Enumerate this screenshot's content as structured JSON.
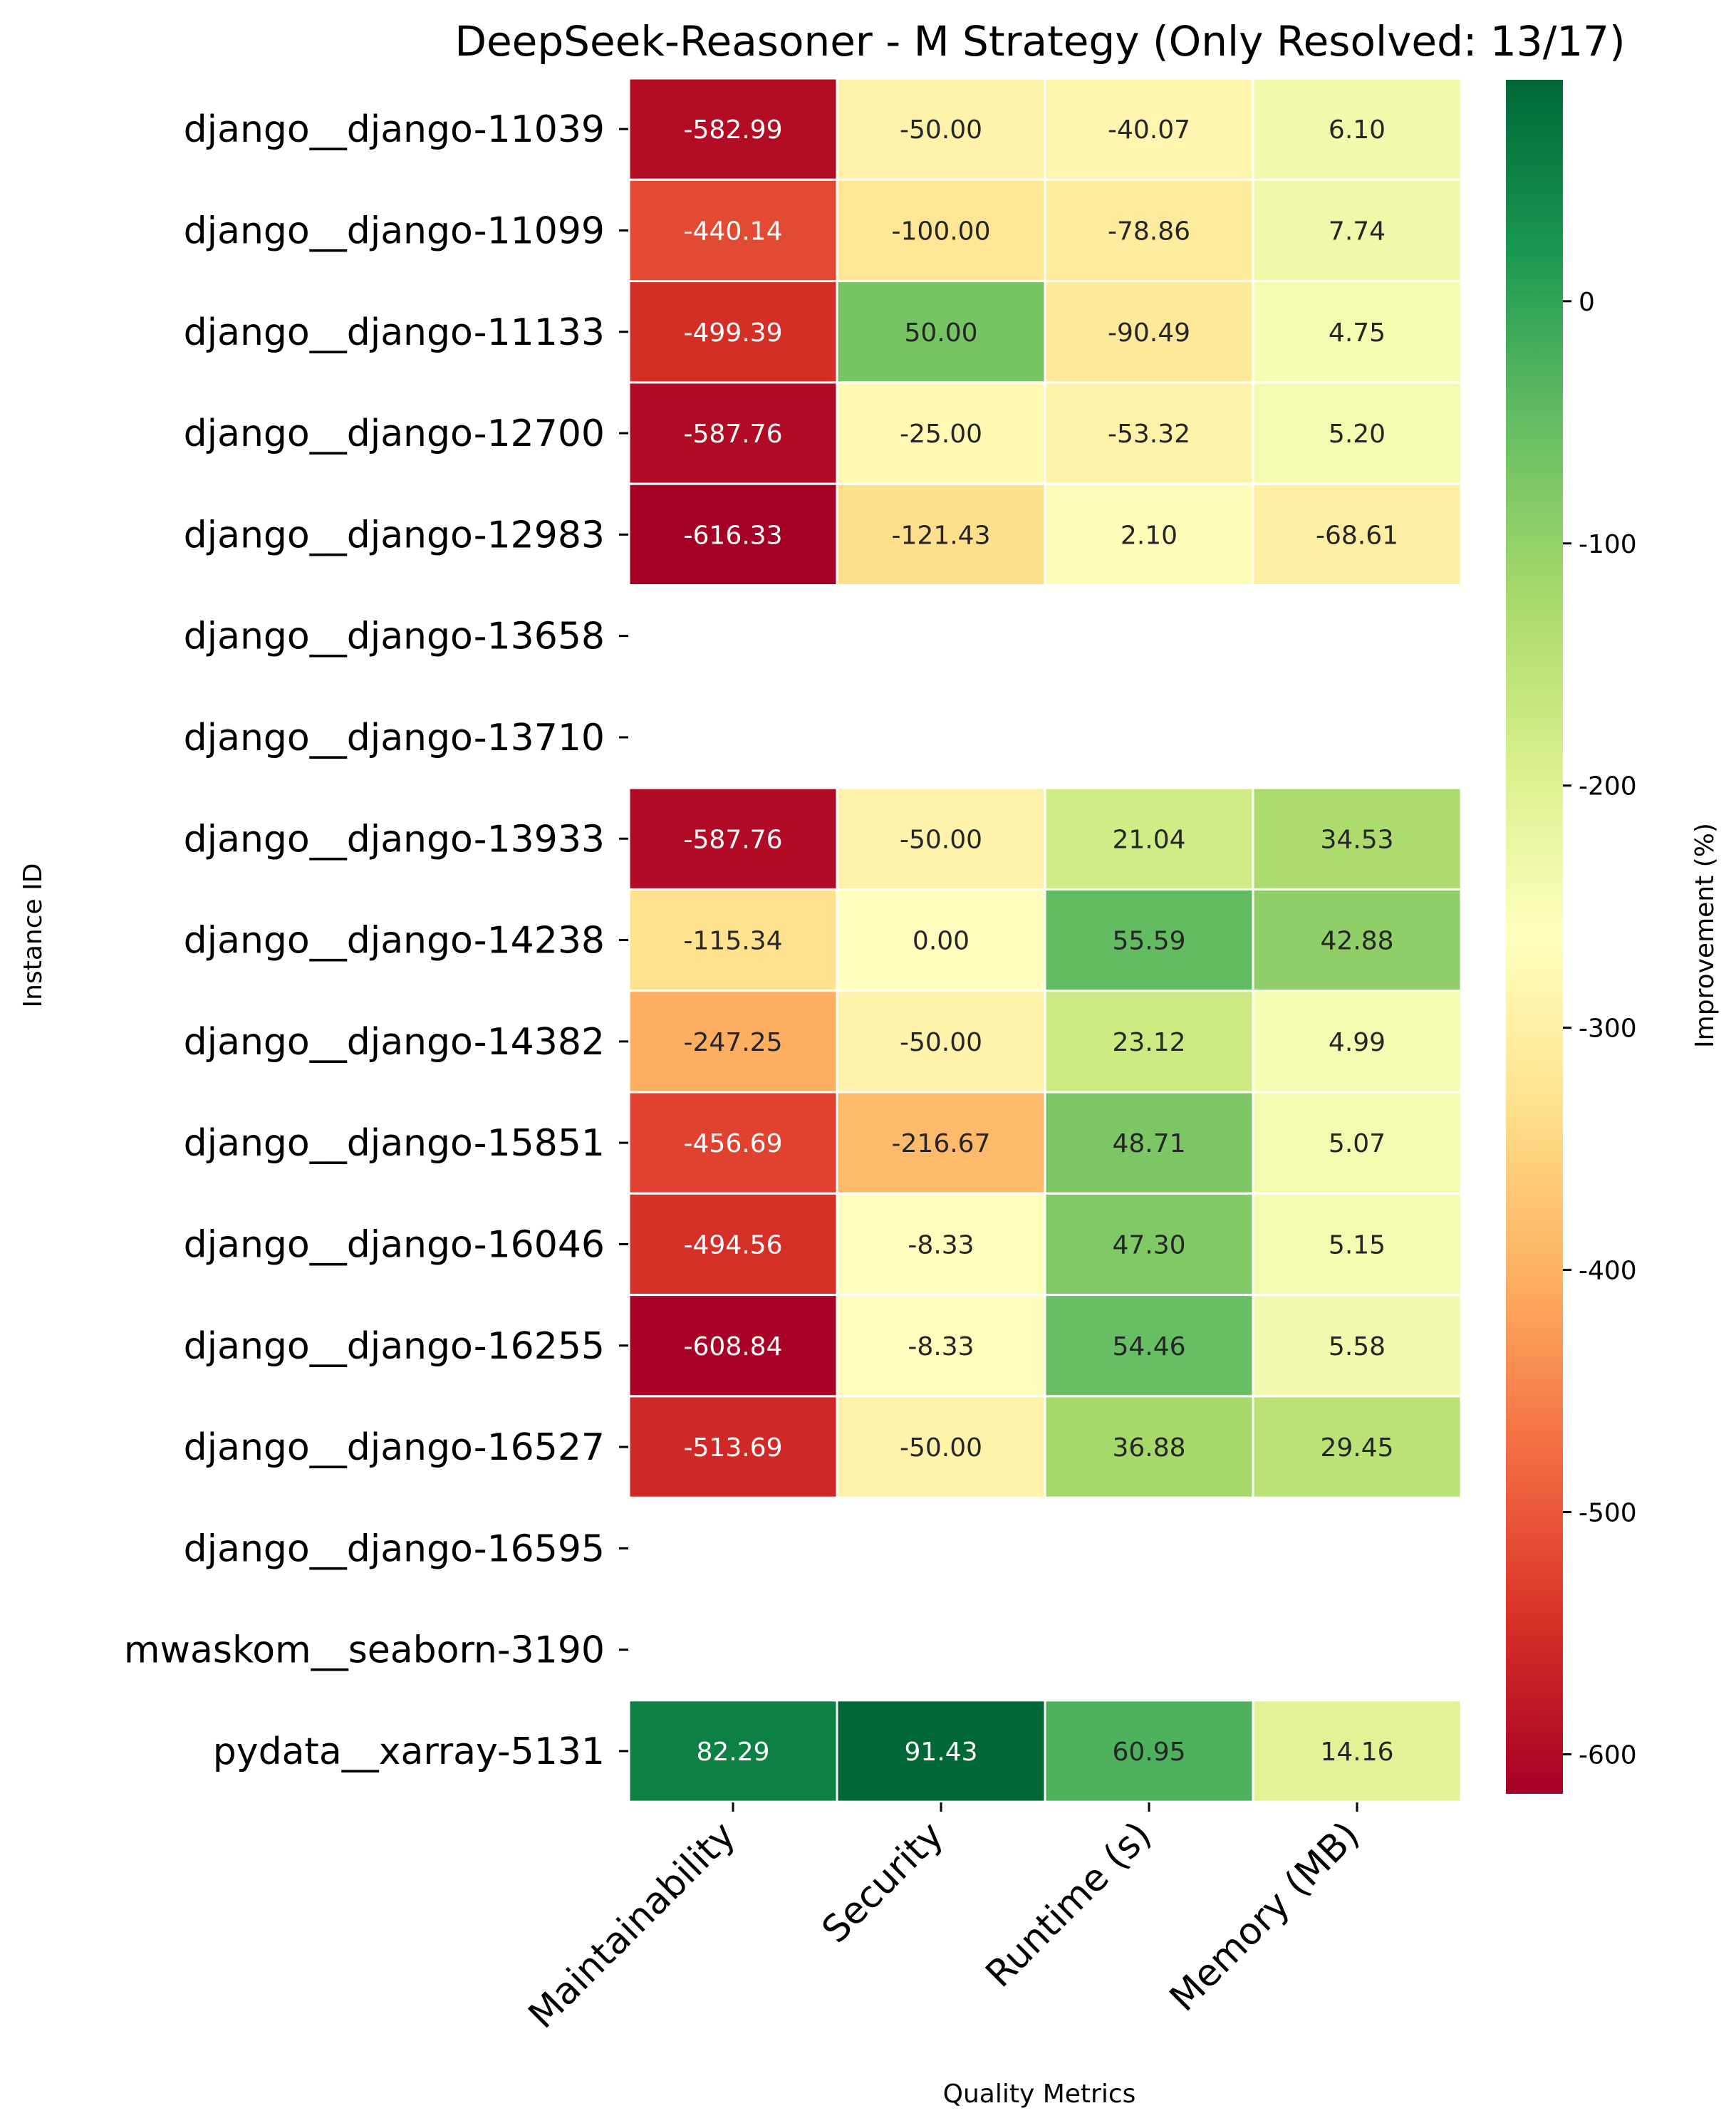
{
  "chart_data": {
    "type": "heatmap",
    "title": "DeepSeek-Reasoner - M Strategy (Only Resolved: 13/17)",
    "xlabel": "Quality Metrics",
    "ylabel": "Instance ID",
    "colorbar_label": "Improvement (%)",
    "colormap": "RdYlGn",
    "vmin": -616.33,
    "vmax": 91.43,
    "colorbar_ticks": [
      "0",
      "-100",
      "-200",
      "-300",
      "-400",
      "-500",
      "-600"
    ],
    "colorbar_tick_values": [
      0,
      -100,
      -200,
      -300,
      -400,
      -500,
      -600
    ],
    "columns": [
      "Maintainability",
      "Security",
      "Runtime (s)",
      "Memory (MB)"
    ],
    "rows": [
      "django__django-11039",
      "django__django-11099",
      "django__django-11133",
      "django__django-12700",
      "django__django-12983",
      "django__django-13658",
      "django__django-13710",
      "django__django-13933",
      "django__django-14238",
      "django__django-14382",
      "django__django-15851",
      "django__django-16046",
      "django__django-16255",
      "django__django-16527",
      "django__django-16595",
      "mwaskom__seaborn-3190",
      "pydata__xarray-5131"
    ],
    "values": [
      [
        -582.99,
        -50.0,
        -40.07,
        6.1
      ],
      [
        -440.14,
        -100.0,
        -78.86,
        7.74
      ],
      [
        -499.39,
        50.0,
        -90.49,
        4.75
      ],
      [
        -587.76,
        -25.0,
        -53.32,
        5.2
      ],
      [
        -616.33,
        -121.43,
        2.1,
        -68.61
      ],
      null,
      null,
      [
        -587.76,
        -50.0,
        21.04,
        34.53
      ],
      [
        -115.34,
        0.0,
        55.59,
        42.88
      ],
      [
        -247.25,
        -50.0,
        23.12,
        4.99
      ],
      [
        -456.69,
        -216.67,
        48.71,
        5.07
      ],
      [
        -494.56,
        -8.33,
        47.3,
        5.15
      ],
      [
        -608.84,
        -8.33,
        54.46,
        5.58
      ],
      [
        -513.69,
        -50.0,
        36.88,
        29.45
      ],
      null,
      null,
      [
        82.29,
        91.43,
        60.95,
        14.16
      ]
    ]
  }
}
